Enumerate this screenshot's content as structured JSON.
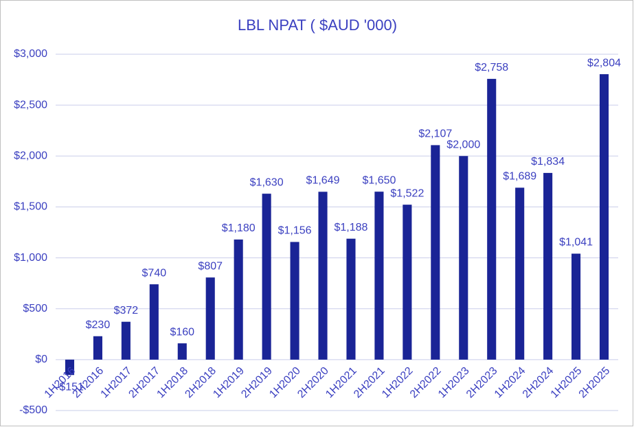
{
  "chart_data": {
    "type": "bar",
    "title": "LBL NPAT ( $AUD '000)",
    "categories": [
      "1H2016",
      "2H2016",
      "1H2017",
      "2H2017",
      "1H2018",
      "2H2018",
      "1H2019",
      "2H2019",
      "1H2020",
      "2H2020",
      "1H2021",
      "2H2021",
      "1H2022",
      "2H2022",
      "1H2023",
      "2H2023",
      "1H2024",
      "2H2024",
      "1H2025",
      "2H2025"
    ],
    "values": [
      -151,
      230,
      372,
      740,
      160,
      807,
      1180,
      1630,
      1156,
      1649,
      1188,
      1650,
      1522,
      2107,
      2000,
      2758,
      1689,
      1834,
      1041,
      2804
    ],
    "value_labels": [
      "-$151",
      "$230",
      "$372",
      "$740",
      "$160",
      "$807",
      "$1,180",
      "$1,630",
      "$1,156",
      "$1,649",
      "$1,188",
      "$1,650",
      "$1,522",
      "$2,107",
      "$2,000",
      "$2,758",
      "$1,689",
      "$1,834",
      "$1,041",
      "$2,804"
    ],
    "color": "#1a2496",
    "ylim": [
      -500,
      3000
    ],
    "yticks": [
      {
        "value": -500,
        "label": "-$500"
      },
      {
        "value": 0,
        "label": "$0"
      },
      {
        "value": 500,
        "label": "$500"
      },
      {
        "value": 1000,
        "label": "$1,000"
      },
      {
        "value": 1500,
        "label": "$1,500"
      },
      {
        "value": 2000,
        "label": "$2,000"
      },
      {
        "value": 2500,
        "label": "$2,500"
      },
      {
        "value": 3000,
        "label": "$3,000"
      }
    ],
    "grid": true
  }
}
